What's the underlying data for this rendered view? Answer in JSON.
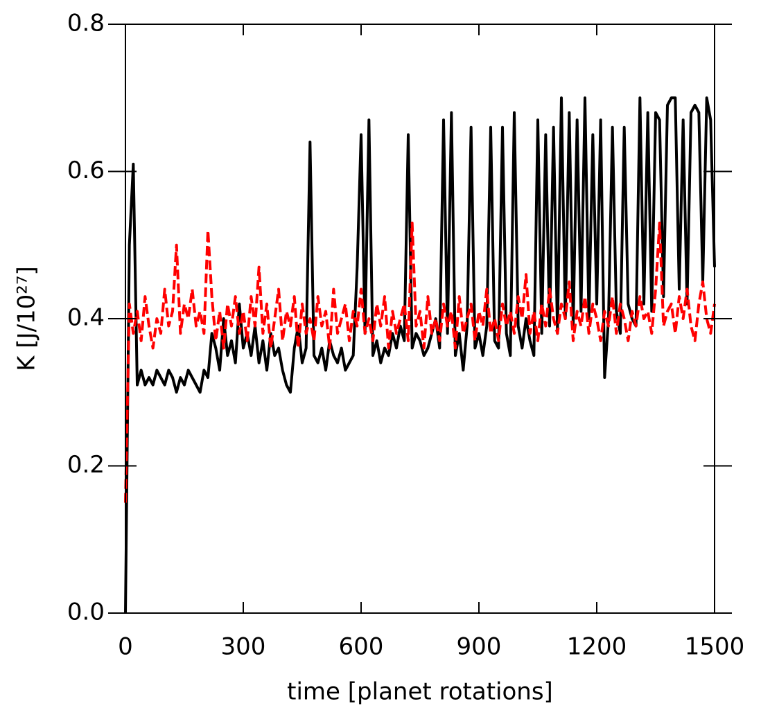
{
  "chart_data": {
    "type": "line",
    "xlabel": "time [planet rotations]",
    "ylabel": "K [J/10²⁷]",
    "xlim": [
      0,
      1500
    ],
    "xticks": [
      0,
      300,
      600,
      900,
      1200,
      1500
    ],
    "ylim": [
      0,
      0.8
    ],
    "yticks": [
      {
        "value": 0,
        "label": "0.0"
      },
      0.2,
      0.4,
      0.6,
      0.8
    ],
    "x": [
      0,
      10,
      20,
      30,
      40,
      50,
      60,
      70,
      80,
      90,
      100,
      110,
      120,
      130,
      140,
      150,
      160,
      170,
      180,
      190,
      200,
      210,
      220,
      230,
      240,
      250,
      260,
      270,
      280,
      290,
      300,
      310,
      320,
      330,
      340,
      350,
      360,
      370,
      380,
      390,
      400,
      410,
      420,
      430,
      440,
      450,
      460,
      470,
      480,
      490,
      500,
      510,
      520,
      530,
      540,
      550,
      560,
      570,
      580,
      590,
      600,
      610,
      620,
      630,
      640,
      650,
      660,
      670,
      680,
      690,
      700,
      710,
      720,
      730,
      740,
      750,
      760,
      770,
      780,
      790,
      800,
      810,
      820,
      830,
      840,
      850,
      860,
      870,
      880,
      890,
      900,
      910,
      920,
      930,
      940,
      950,
      960,
      970,
      980,
      990,
      1000,
      1010,
      1020,
      1030,
      1040,
      1050,
      1060,
      1070,
      1080,
      1090,
      1100,
      1110,
      1120,
      1130,
      1140,
      1150,
      1160,
      1170,
      1180,
      1190,
      1200,
      1210,
      1220,
      1230,
      1240,
      1250,
      1260,
      1270,
      1280,
      1290,
      1300,
      1310,
      1320,
      1330,
      1340,
      1350,
      1360,
      1370,
      1380,
      1390,
      1400,
      1410,
      1420,
      1430,
      1440,
      1450,
      1460,
      1470,
      1480,
      1490,
      1500
    ],
    "series": [
      {
        "color": "#000000",
        "dash": false,
        "values": [
          0,
          0.5,
          0.61,
          0.31,
          0.33,
          0.31,
          0.32,
          0.31,
          0.33,
          0.32,
          0.31,
          0.33,
          0.32,
          0.3,
          0.32,
          0.31,
          0.33,
          0.32,
          0.31,
          0.3,
          0.33,
          0.32,
          0.38,
          0.36,
          0.33,
          0.4,
          0.35,
          0.37,
          0.34,
          0.42,
          0.36,
          0.38,
          0.35,
          0.39,
          0.34,
          0.37,
          0.33,
          0.38,
          0.35,
          0.36,
          0.33,
          0.31,
          0.3,
          0.36,
          0.39,
          0.34,
          0.36,
          0.64,
          0.35,
          0.34,
          0.36,
          0.33,
          0.37,
          0.35,
          0.34,
          0.36,
          0.33,
          0.34,
          0.35,
          0.47,
          0.65,
          0.38,
          0.67,
          0.35,
          0.37,
          0.34,
          0.36,
          0.35,
          0.38,
          0.36,
          0.39,
          0.37,
          0.65,
          0.36,
          0.38,
          0.37,
          0.35,
          0.36,
          0.38,
          0.4,
          0.36,
          0.67,
          0.38,
          0.68,
          0.35,
          0.38,
          0.33,
          0.39,
          0.66,
          0.36,
          0.38,
          0.35,
          0.39,
          0.66,
          0.37,
          0.36,
          0.66,
          0.38,
          0.35,
          0.68,
          0.39,
          0.36,
          0.4,
          0.37,
          0.35,
          0.67,
          0.38,
          0.65,
          0.39,
          0.66,
          0.38,
          0.7,
          0.4,
          0.68,
          0.39,
          0.67,
          0.41,
          0.7,
          0.4,
          0.65,
          0.42,
          0.67,
          0.32,
          0.4,
          0.66,
          0.41,
          0.38,
          0.66,
          0.42,
          0.4,
          0.39,
          0.7,
          0.42,
          0.68,
          0.41,
          0.68,
          0.67,
          0.43,
          0.69,
          0.7,
          0.7,
          0.44,
          0.67,
          0.42,
          0.68,
          0.69,
          0.68,
          0.45,
          0.7,
          0.67,
          0.47
        ]
      },
      {
        "color": "#ff0000",
        "dash": true,
        "values": [
          0.15,
          0.42,
          0.38,
          0.41,
          0.37,
          0.43,
          0.39,
          0.36,
          0.4,
          0.38,
          0.44,
          0.39,
          0.41,
          0.5,
          0.38,
          0.42,
          0.4,
          0.44,
          0.39,
          0.41,
          0.38,
          0.52,
          0.43,
          0.37,
          0.41,
          0.36,
          0.42,
          0.39,
          0.43,
          0.38,
          0.41,
          0.37,
          0.43,
          0.39,
          0.47,
          0.38,
          0.42,
          0.36,
          0.4,
          0.44,
          0.37,
          0.41,
          0.39,
          0.43,
          0.36,
          0.42,
          0.38,
          0.4,
          0.37,
          0.43,
          0.39,
          0.41,
          0.36,
          0.44,
          0.38,
          0.4,
          0.42,
          0.37,
          0.41,
          0.39,
          0.44,
          0.38,
          0.4,
          0.37,
          0.42,
          0.39,
          0.43,
          0.36,
          0.41,
          0.38,
          0.4,
          0.42,
          0.37,
          0.53,
          0.39,
          0.41,
          0.36,
          0.43,
          0.38,
          0.4,
          0.37,
          0.42,
          0.39,
          0.41,
          0.36,
          0.43,
          0.38,
          0.4,
          0.42,
          0.37,
          0.41,
          0.39,
          0.44,
          0.38,
          0.4,
          0.37,
          0.42,
          0.39,
          0.41,
          0.38,
          0.43,
          0.4,
          0.46,
          0.38,
          0.41,
          0.37,
          0.42,
          0.39,
          0.44,
          0.4,
          0.38,
          0.42,
          0.4,
          0.45,
          0.37,
          0.41,
          0.39,
          0.43,
          0.38,
          0.42,
          0.4,
          0.37,
          0.41,
          0.39,
          0.43,
          0.38,
          0.42,
          0.4,
          0.37,
          0.41,
          0.39,
          0.43,
          0.4,
          0.41,
          0.38,
          0.44,
          0.53,
          0.39,
          0.41,
          0.42,
          0.38,
          0.43,
          0.4,
          0.44,
          0.39,
          0.37,
          0.42,
          0.45,
          0.4,
          0.38,
          0.42
        ]
      }
    ]
  }
}
